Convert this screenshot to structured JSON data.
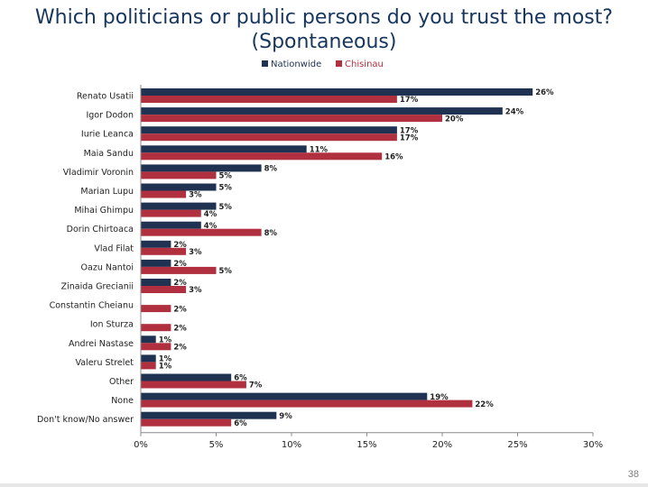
{
  "slide": {
    "title_line1": "Which politicians or public persons do you trust the most?",
    "title_line2": "(Spontaneous)",
    "page_number": "38"
  },
  "colors": {
    "nationwide": "#1f3251",
    "chisinau": "#b0303f",
    "title": "#17365d"
  },
  "chart_data": {
    "type": "bar",
    "orientation": "horizontal",
    "categories": [
      "Renato Usatii",
      "Igor Dodon",
      "Iurie Leanca",
      "Maia Sandu",
      "Vladimir Voronin",
      "Marian Lupu",
      "Mihai Ghimpu",
      "Dorin Chirtoaca",
      "Vlad Filat",
      "Oazu Nantoi",
      "Zinaida Grecianii",
      "Constantin Cheianu",
      "Ion Sturza",
      "Andrei Nastase",
      "Valeru Strelet",
      "Other",
      "None",
      "Don't know/No answer"
    ],
    "series": [
      {
        "name": "Nationwide",
        "color": "#1f3251",
        "values": [
          26,
          24,
          17,
          11,
          8,
          5,
          5,
          4,
          2,
          2,
          2,
          null,
          null,
          1,
          1,
          6,
          19,
          9
        ],
        "labels": [
          "26%",
          "24%",
          "17%",
          "11%",
          "8%",
          "5%",
          "5%",
          "4%",
          "2%",
          "2%",
          "2%",
          "",
          "",
          "1%",
          "1%",
          "6%",
          "19%",
          "9%"
        ]
      },
      {
        "name": "Chisinau",
        "color": "#b0303f",
        "values": [
          17,
          20,
          17,
          16,
          5,
          3,
          4,
          8,
          3,
          5,
          3,
          2,
          2,
          2,
          1,
          7,
          22,
          6
        ],
        "labels": [
          "17%",
          "20%",
          "17%",
          "16%",
          "5%",
          "3%",
          "4%",
          "8%",
          "3%",
          "5%",
          "3%",
          "2%",
          "2%",
          "2%",
          "1%",
          "7%",
          "22%",
          "6%"
        ]
      }
    ],
    "x_ticks": [
      "0%",
      "5%",
      "10%",
      "15%",
      "20%",
      "25%",
      "30%"
    ],
    "xlim": [
      0,
      30
    ],
    "legend_position": "top-center",
    "grid": false
  }
}
